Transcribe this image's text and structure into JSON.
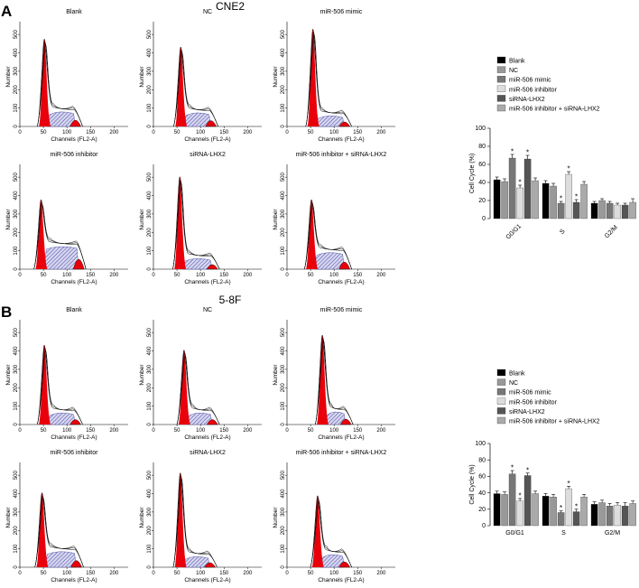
{
  "panels": [
    {
      "letter": "A",
      "title": "CNE2",
      "histogram_titles": [
        "Blank",
        "NC",
        "miR-506 mimic",
        "miR-506 inhibitor",
        "siRNA-LHX2",
        "miR-506 inhibitor + siRNA-LHX2"
      ]
    },
    {
      "letter": "B",
      "title": "5-8F",
      "histogram_titles": [
        "Blank",
        "NC",
        "miR-506 mimic",
        "miR-506 inhibitor",
        "siRNA-LHX2",
        "miR-506 inhibitor + siRNA-LHX2"
      ]
    }
  ],
  "histogram_axes": {
    "xlabel": "Channels (FL2-A)",
    "ylabel": "Number",
    "xticks": [
      "0",
      "50",
      "100",
      "150",
      "200"
    ],
    "yticks": [
      "0",
      "100",
      "200",
      "300",
      "400",
      "500"
    ]
  },
  "colors": {
    "g1_fill": "#e8000b",
    "s_phase_hatch": "#3a3a9a",
    "s_phase_bg": "#d6d6f0",
    "legend": [
      "#000000",
      "#999999",
      "#777777",
      "#dddddd",
      "#555555",
      "#aaaaaa"
    ]
  },
  "chart_data": [
    {
      "type": "bar",
      "panel": "A",
      "ylabel": "Cell Cycle (%)",
      "ylim": [
        0,
        100
      ],
      "yticks": [
        "0",
        "20",
        "40",
        "60",
        "80",
        "100"
      ],
      "categories": [
        "G0/G1",
        "S",
        "G2/M"
      ],
      "series": [
        {
          "name": "Blank",
          "values": [
            43,
            39,
            17
          ],
          "errors": [
            3,
            3,
            2
          ],
          "star": [
            false,
            false,
            false
          ]
        },
        {
          "name": "NC",
          "values": [
            41,
            36,
            20
          ],
          "errors": [
            3,
            3,
            2
          ],
          "star": [
            false,
            false,
            false
          ]
        },
        {
          "name": "miR-506 mimic",
          "values": [
            67,
            17,
            17
          ],
          "errors": [
            4,
            2,
            2
          ],
          "star": [
            true,
            true,
            false
          ]
        },
        {
          "name": "miR-506 inhibitor",
          "values": [
            34,
            49,
            15
          ],
          "errors": [
            3,
            3,
            2
          ],
          "star": [
            true,
            true,
            false
          ]
        },
        {
          "name": "siRNA-LHX2",
          "values": [
            66,
            18,
            15
          ],
          "errors": [
            4,
            3,
            2
          ],
          "star": [
            true,
            true,
            false
          ]
        },
        {
          "name": "miR-506 inhibitor + siRNA-LHX2",
          "values": [
            42,
            38,
            18
          ],
          "errors": [
            3,
            3,
            4
          ],
          "star": [
            false,
            false,
            false
          ]
        }
      ]
    },
    {
      "type": "bar",
      "panel": "B",
      "ylabel": "Cell Cycle (%)",
      "ylim": [
        0,
        100
      ],
      "yticks": [
        "0",
        "20",
        "40",
        "60",
        "80",
        "100"
      ],
      "categories": [
        "G0/G1",
        "S",
        "G2/M"
      ],
      "series": [
        {
          "name": "Blank",
          "values": [
            39,
            36,
            26
          ],
          "errors": [
            3,
            3,
            3
          ],
          "star": [
            false,
            false,
            false
          ]
        },
        {
          "name": "NC",
          "values": [
            38,
            35,
            28
          ],
          "errors": [
            3,
            3,
            3
          ],
          "star": [
            false,
            false,
            false
          ]
        },
        {
          "name": "miR-506 mimic",
          "values": [
            63,
            16,
            24
          ],
          "errors": [
            4,
            2,
            3
          ],
          "star": [
            true,
            true,
            false
          ]
        },
        {
          "name": "miR-506 inhibitor",
          "values": [
            30,
            45,
            25
          ],
          "errors": [
            3,
            3,
            3
          ],
          "star": [
            true,
            true,
            false
          ]
        },
        {
          "name": "siRNA-LHX2",
          "values": [
            61,
            17,
            24
          ],
          "errors": [
            3,
            3,
            4
          ],
          "star": [
            true,
            true,
            false
          ]
        },
        {
          "name": "miR-506 inhibitor + siRNA-LHX2",
          "values": [
            39,
            35,
            27
          ],
          "errors": [
            3,
            3,
            3
          ],
          "star": [
            false,
            false,
            false
          ]
        }
      ]
    }
  ]
}
